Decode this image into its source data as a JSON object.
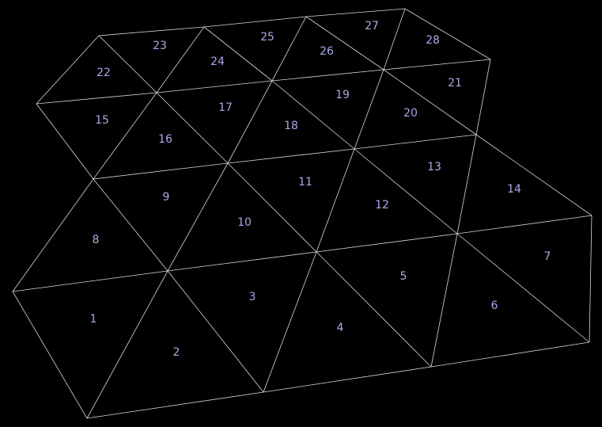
{
  "colors": {
    "background": "#000000",
    "edge": "#d8d8d8",
    "label": "#a9a9e8"
  },
  "triangles": [
    {
      "label": "1"
    },
    {
      "label": "2"
    },
    {
      "label": "3"
    },
    {
      "label": "4"
    },
    {
      "label": "5"
    },
    {
      "label": "6"
    },
    {
      "label": "7"
    },
    {
      "label": "8"
    },
    {
      "label": "9"
    },
    {
      "label": "10"
    },
    {
      "label": "11"
    },
    {
      "label": "12"
    },
    {
      "label": "13"
    },
    {
      "label": "14"
    },
    {
      "label": "15"
    },
    {
      "label": "16"
    },
    {
      "label": "17"
    },
    {
      "label": "18"
    },
    {
      "label": "19"
    },
    {
      "label": "20"
    },
    {
      "label": "21"
    },
    {
      "label": "22"
    },
    {
      "label": "23"
    },
    {
      "label": "24"
    },
    {
      "label": "25"
    },
    {
      "label": "26"
    },
    {
      "label": "27"
    },
    {
      "label": "28"
    }
  ]
}
